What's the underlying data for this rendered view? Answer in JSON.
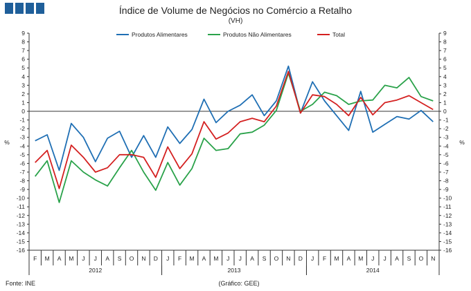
{
  "logo": {
    "blocks": 4,
    "color": "#1f5f9a"
  },
  "chart_data": {
    "type": "line",
    "title": "Índice de Volume de Negócios no Comércio a Retalho",
    "subtitle": "(VH)",
    "ylabel_left": "%",
    "ylabel_right": "%",
    "ylim": [
      -16,
      9
    ],
    "yticks": [
      9,
      8,
      7,
      6,
      5,
      4,
      3,
      2,
      1,
      0,
      -1,
      -2,
      -3,
      -4,
      -5,
      -6,
      -7,
      -8,
      -9,
      -10,
      -11,
      -12,
      -13,
      -14,
      -15,
      -16
    ],
    "grid": false,
    "legend_position": "top",
    "categories": [
      "F",
      "M",
      "A",
      "M",
      "J",
      "J",
      "A",
      "S",
      "O",
      "N",
      "D",
      "J",
      "F",
      "M",
      "A",
      "M",
      "J",
      "J",
      "A",
      "S",
      "O",
      "N",
      "D",
      "J",
      "F",
      "M",
      "A",
      "M",
      "J",
      "J",
      "A",
      "S",
      "O",
      "N"
    ],
    "year_labels": [
      {
        "label": "2012",
        "from": 0,
        "to": 10
      },
      {
        "label": "2013",
        "from": 11,
        "to": 22
      },
      {
        "label": "2014",
        "from": 23,
        "to": 33
      }
    ],
    "series": [
      {
        "name": "Produtos Alimentares",
        "color": "#1f6fb4",
        "values": [
          -3.4,
          -2.7,
          -6.8,
          -1.4,
          -3.0,
          -5.8,
          -3.1,
          -2.3,
          -5.3,
          -2.8,
          -5.3,
          -1.8,
          -3.7,
          -2.1,
          1.4,
          -1.3,
          0.0,
          0.7,
          1.9,
          -0.5,
          1.2,
          5.2,
          -0.2,
          3.4,
          1.2,
          -0.5,
          -2.2,
          2.3,
          -2.4,
          -1.5,
          -0.6,
          -0.9,
          0.1,
          -1.2
        ]
      },
      {
        "name": "Produtos Não Alimentares",
        "color": "#2aa24a",
        "values": [
          -7.5,
          -5.7,
          -10.5,
          -5.7,
          -7.0,
          -7.9,
          -8.6,
          -6.5,
          -4.5,
          -7.0,
          -9.1,
          -5.9,
          -8.5,
          -6.6,
          -3.1,
          -4.5,
          -4.3,
          -2.6,
          -2.4,
          -1.6,
          0.1,
          4.4,
          0.0,
          0.8,
          2.2,
          1.8,
          0.8,
          1.2,
          1.3,
          3.0,
          2.7,
          3.9,
          1.7,
          1.2
        ]
      },
      {
        "name": "Total",
        "color": "#d42020",
        "values": [
          -5.9,
          -4.5,
          -8.9,
          -3.9,
          -5.3,
          -7.0,
          -6.5,
          -5.0,
          -5.0,
          -5.3,
          -7.6,
          -4.1,
          -6.6,
          -4.9,
          -1.2,
          -3.2,
          -2.5,
          -1.2,
          -0.8,
          -1.2,
          0.6,
          4.6,
          -0.2,
          1.9,
          1.7,
          0.8,
          -0.5,
          1.6,
          -0.4,
          1.0,
          1.3,
          1.8,
          1.0,
          0.2
        ]
      }
    ]
  },
  "footer": {
    "source": "Fonte: INE",
    "credit": "(Gráfico: GEE)"
  }
}
